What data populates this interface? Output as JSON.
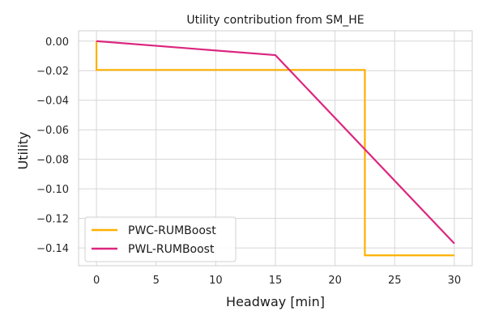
{
  "chart_data": {
    "type": "line",
    "title": "Utility contribution from SM_HE",
    "xlabel": "Headway [min]",
    "ylabel": "Utility",
    "xlim": [
      -1.5,
      31.5
    ],
    "ylim": [
      -0.152,
      0.007
    ],
    "xticks": [
      0,
      5,
      10,
      15,
      20,
      25,
      30
    ],
    "yticks": [
      0.0,
      -0.02,
      -0.04,
      -0.06,
      -0.08,
      -0.1,
      -0.12,
      -0.14
    ],
    "ytick_labels": [
      "0.00",
      "−0.02",
      "−0.04",
      "−0.06",
      "−0.08",
      "−0.10",
      "−0.12",
      "−0.14"
    ],
    "grid": true,
    "legend_position": "lower-left",
    "series": [
      {
        "name": "PWC-RUMBoost",
        "color": "#FFB000",
        "x": [
          0,
          0,
          22.5,
          22.5,
          30
        ],
        "y": [
          0.0,
          -0.0195,
          -0.0195,
          -0.145,
          -0.145
        ]
      },
      {
        "name": "PWL-RUMBoost",
        "color": "#DC267F",
        "x": [
          0,
          15,
          30
        ],
        "y": [
          0.0,
          -0.0095,
          -0.137
        ]
      }
    ]
  }
}
